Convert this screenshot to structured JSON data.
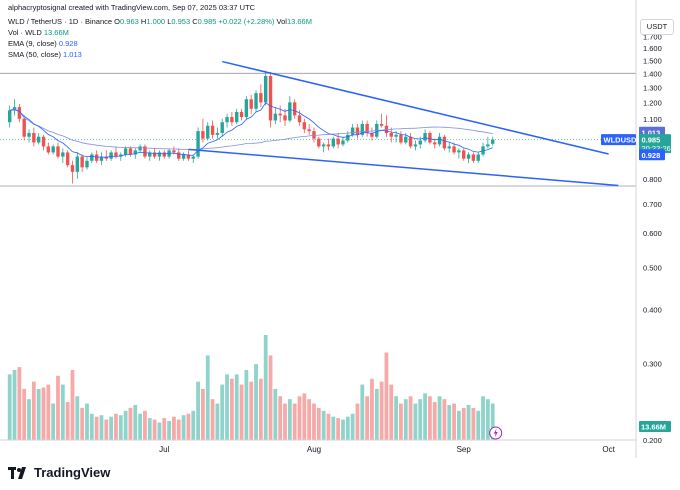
{
  "header": {
    "credit": "alphacryptosignal created with TradingView.com, Sep 07, 2025 03:37 UTC",
    "symbol_line": {
      "symbol": "WLD / TetherUS · 1D · Binance",
      "o_label": "O",
      "o": "0.963",
      "h_label": "H",
      "h": "1.000",
      "l_label": "L",
      "l": "0.953",
      "c_label": "C",
      "c": "0.985",
      "change": "+0.022 (+2.28%)",
      "vol_label": "Vol",
      "vol": "13.66M"
    },
    "vol_line": {
      "label": "Vol · WLD",
      "value": "13.66M"
    },
    "ema_line": {
      "label": "EMA (9, close)",
      "value": "0.928"
    },
    "sma_line": {
      "label": "SMA (50, close)",
      "value": "1.013"
    }
  },
  "currency_button": "USDT",
  "brand": "TradingView",
  "colors": {
    "up": "#26a69a",
    "down": "#ef5350",
    "vol_up": "#8fd3ca",
    "vol_down": "#f7a9a7",
    "ema": "#2962ff",
    "sma": "#7e8fe0",
    "trendline": "#2962ff"
  },
  "chart_data": {
    "type": "candlestick",
    "y_scale": "log",
    "ylim": [
      0.2,
      1.98
    ],
    "y_ticks": [
      "1.800",
      "1.700",
      "1.600",
      "1.500",
      "1.400",
      "1.300",
      "1.200",
      "1.100",
      "1.000",
      "0.900",
      "0.800",
      "0.700",
      "0.600",
      "0.500",
      "0.400",
      "0.300",
      "0.200"
    ],
    "x_ticks": [
      "Jul",
      "Aug",
      "Sep",
      "Oct"
    ],
    "date_range": [
      "2025-06-01",
      "2025-09-07"
    ],
    "price_labels": [
      {
        "text": "1.013",
        "value": 1.013,
        "color": "#5b6fd8"
      },
      {
        "text": "WLDUSDT",
        "value": 0.985,
        "color": "#2962ff"
      },
      {
        "text": "0.985",
        "value": 0.985,
        "color": "#26a69a"
      },
      {
        "text": "20:22:26",
        "value": 0.985,
        "color": "#26a69a"
      },
      {
        "text": "0.928",
        "value": 0.928,
        "color": "#2962ff"
      }
    ],
    "horizontal_lines": [
      1.4,
      0.77
    ],
    "current_price": 0.985,
    "volume_label": "13.66M",
    "candles": [
      {
        "o": 1.08,
        "h": 1.18,
        "l": 1.05,
        "c": 1.15,
        "v": 45
      },
      {
        "o": 1.15,
        "h": 1.22,
        "l": 1.12,
        "c": 1.17,
        "v": 48
      },
      {
        "o": 1.17,
        "h": 1.19,
        "l": 1.08,
        "c": 1.1,
        "v": 50
      },
      {
        "o": 1.1,
        "h": 1.12,
        "l": 0.98,
        "c": 1.0,
        "v": 35
      },
      {
        "o": 1.0,
        "h": 1.04,
        "l": 0.97,
        "c": 1.02,
        "v": 28
      },
      {
        "o": 1.02,
        "h": 1.05,
        "l": 0.95,
        "c": 0.97,
        "v": 40
      },
      {
        "o": 0.97,
        "h": 1.02,
        "l": 0.96,
        "c": 1.0,
        "v": 35
      },
      {
        "o": 1.0,
        "h": 1.01,
        "l": 0.93,
        "c": 0.95,
        "v": 36
      },
      {
        "o": 0.95,
        "h": 0.97,
        "l": 0.91,
        "c": 0.92,
        "v": 38
      },
      {
        "o": 0.92,
        "h": 0.96,
        "l": 0.91,
        "c": 0.95,
        "v": 25
      },
      {
        "o": 0.95,
        "h": 0.97,
        "l": 0.89,
        "c": 0.9,
        "v": 44
      },
      {
        "o": 0.9,
        "h": 0.94,
        "l": 0.87,
        "c": 0.92,
        "v": 38
      },
      {
        "o": 0.92,
        "h": 0.93,
        "l": 0.85,
        "c": 0.86,
        "v": 26
      },
      {
        "o": 0.86,
        "h": 0.88,
        "l": 0.78,
        "c": 0.83,
        "v": 48
      },
      {
        "o": 0.83,
        "h": 0.92,
        "l": 0.8,
        "c": 0.9,
        "v": 30
      },
      {
        "o": 0.9,
        "h": 0.91,
        "l": 0.83,
        "c": 0.85,
        "v": 22
      },
      {
        "o": 0.85,
        "h": 0.9,
        "l": 0.84,
        "c": 0.88,
        "v": 25
      },
      {
        "o": 0.88,
        "h": 0.92,
        "l": 0.87,
        "c": 0.91,
        "v": 18
      },
      {
        "o": 0.91,
        "h": 0.93,
        "l": 0.87,
        "c": 0.88,
        "v": 16
      },
      {
        "o": 0.88,
        "h": 0.92,
        "l": 0.86,
        "c": 0.9,
        "v": 17
      },
      {
        "o": 0.9,
        "h": 0.93,
        "l": 0.88,
        "c": 0.89,
        "v": 14
      },
      {
        "o": 0.89,
        "h": 0.93,
        "l": 0.88,
        "c": 0.92,
        "v": 16
      },
      {
        "o": 0.92,
        "h": 0.95,
        "l": 0.89,
        "c": 0.9,
        "v": 18
      },
      {
        "o": 0.9,
        "h": 0.92,
        "l": 0.88,
        "c": 0.91,
        "v": 17
      },
      {
        "o": 0.91,
        "h": 0.95,
        "l": 0.9,
        "c": 0.94,
        "v": 20
      },
      {
        "o": 0.94,
        "h": 0.95,
        "l": 0.9,
        "c": 0.91,
        "v": 22
      },
      {
        "o": 0.91,
        "h": 0.94,
        "l": 0.89,
        "c": 0.93,
        "v": 24
      },
      {
        "o": 0.93,
        "h": 0.96,
        "l": 0.92,
        "c": 0.95,
        "v": 18
      },
      {
        "o": 0.95,
        "h": 0.96,
        "l": 0.89,
        "c": 0.9,
        "v": 20
      },
      {
        "o": 0.9,
        "h": 0.93,
        "l": 0.88,
        "c": 0.92,
        "v": 15
      },
      {
        "o": 0.92,
        "h": 0.94,
        "l": 0.89,
        "c": 0.9,
        "v": 14
      },
      {
        "o": 0.9,
        "h": 0.93,
        "l": 0.88,
        "c": 0.92,
        "v": 12
      },
      {
        "o": 0.92,
        "h": 0.93,
        "l": 0.89,
        "c": 0.9,
        "v": 15
      },
      {
        "o": 0.9,
        "h": 0.94,
        "l": 0.89,
        "c": 0.93,
        "v": 13
      },
      {
        "o": 0.93,
        "h": 0.95,
        "l": 0.91,
        "c": 0.92,
        "v": 16
      },
      {
        "o": 0.92,
        "h": 0.94,
        "l": 0.88,
        "c": 0.89,
        "v": 14
      },
      {
        "o": 0.89,
        "h": 0.92,
        "l": 0.88,
        "c": 0.91,
        "v": 17
      },
      {
        "o": 0.91,
        "h": 0.93,
        "l": 0.88,
        "c": 0.89,
        "v": 18
      },
      {
        "o": 0.89,
        "h": 0.91,
        "l": 0.87,
        "c": 0.9,
        "v": 20
      },
      {
        "o": 0.9,
        "h": 1.05,
        "l": 0.89,
        "c": 1.03,
        "v": 40
      },
      {
        "o": 1.03,
        "h": 1.1,
        "l": 0.97,
        "c": 0.99,
        "v": 35
      },
      {
        "o": 0.99,
        "h": 1.08,
        "l": 0.98,
        "c": 1.06,
        "v": 58
      },
      {
        "o": 1.06,
        "h": 1.09,
        "l": 0.99,
        "c": 1.01,
        "v": 28
      },
      {
        "o": 1.01,
        "h": 1.05,
        "l": 0.99,
        "c": 1.02,
        "v": 25
      },
      {
        "o": 1.02,
        "h": 1.1,
        "l": 1.0,
        "c": 1.08,
        "v": 38
      },
      {
        "o": 1.08,
        "h": 1.13,
        "l": 1.05,
        "c": 1.11,
        "v": 45
      },
      {
        "o": 1.11,
        "h": 1.14,
        "l": 1.06,
        "c": 1.08,
        "v": 42
      },
      {
        "o": 1.08,
        "h": 1.16,
        "l": 1.07,
        "c": 1.14,
        "v": 45
      },
      {
        "o": 1.14,
        "h": 1.16,
        "l": 1.09,
        "c": 1.11,
        "v": 38
      },
      {
        "o": 1.11,
        "h": 1.24,
        "l": 1.1,
        "c": 1.22,
        "v": 48
      },
      {
        "o": 1.22,
        "h": 1.25,
        "l": 1.13,
        "c": 1.16,
        "v": 40
      },
      {
        "o": 1.16,
        "h": 1.28,
        "l": 1.14,
        "c": 1.26,
        "v": 52
      },
      {
        "o": 1.26,
        "h": 1.32,
        "l": 1.17,
        "c": 1.2,
        "v": 42
      },
      {
        "o": 1.2,
        "h": 1.42,
        "l": 1.18,
        "c": 1.38,
        "v": 72
      },
      {
        "o": 1.38,
        "h": 1.41,
        "l": 1.05,
        "c": 1.09,
        "v": 58
      },
      {
        "o": 1.09,
        "h": 1.17,
        "l": 1.07,
        "c": 1.13,
        "v": 35
      },
      {
        "o": 1.13,
        "h": 1.18,
        "l": 1.08,
        "c": 1.12,
        "v": 30
      },
      {
        "o": 1.12,
        "h": 1.16,
        "l": 1.06,
        "c": 1.09,
        "v": 25
      },
      {
        "o": 1.09,
        "h": 1.24,
        "l": 1.08,
        "c": 1.2,
        "v": 28
      },
      {
        "o": 1.2,
        "h": 1.22,
        "l": 1.1,
        "c": 1.12,
        "v": 25
      },
      {
        "o": 1.12,
        "h": 1.15,
        "l": 1.06,
        "c": 1.08,
        "v": 30
      },
      {
        "o": 1.08,
        "h": 1.1,
        "l": 1.02,
        "c": 1.04,
        "v": 32
      },
      {
        "o": 1.04,
        "h": 1.07,
        "l": 1.01,
        "c": 1.03,
        "v": 28
      },
      {
        "o": 1.03,
        "h": 1.05,
        "l": 0.97,
        "c": 0.99,
        "v": 25
      },
      {
        "o": 0.99,
        "h": 1.0,
        "l": 0.94,
        "c": 0.95,
        "v": 22
      },
      {
        "o": 0.95,
        "h": 0.97,
        "l": 0.92,
        "c": 0.96,
        "v": 20
      },
      {
        "o": 0.96,
        "h": 0.99,
        "l": 0.93,
        "c": 0.95,
        "v": 18
      },
      {
        "o": 0.95,
        "h": 1.0,
        "l": 0.94,
        "c": 0.99,
        "v": 16
      },
      {
        "o": 0.99,
        "h": 1.02,
        "l": 0.94,
        "c": 0.96,
        "v": 15
      },
      {
        "o": 0.96,
        "h": 1.0,
        "l": 0.95,
        "c": 0.98,
        "v": 14
      },
      {
        "o": 0.98,
        "h": 1.03,
        "l": 0.97,
        "c": 1.01,
        "v": 16
      },
      {
        "o": 1.01,
        "h": 1.07,
        "l": 1.0,
        "c": 1.05,
        "v": 18
      },
      {
        "o": 1.05,
        "h": 1.07,
        "l": 0.99,
        "c": 1.01,
        "v": 25
      },
      {
        "o": 1.01,
        "h": 1.09,
        "l": 1.0,
        "c": 1.07,
        "v": 38
      },
      {
        "o": 1.07,
        "h": 1.09,
        "l": 1.0,
        "c": 1.02,
        "v": 30
      },
      {
        "o": 1.02,
        "h": 1.05,
        "l": 0.98,
        "c": 1.0,
        "v": 42
      },
      {
        "o": 1.0,
        "h": 1.09,
        "l": 0.99,
        "c": 1.07,
        "v": 35
      },
      {
        "o": 1.07,
        "h": 1.13,
        "l": 1.05,
        "c": 1.06,
        "v": 40
      },
      {
        "o": 1.06,
        "h": 1.12,
        "l": 1.0,
        "c": 1.02,
        "v": 60
      },
      {
        "o": 1.02,
        "h": 1.05,
        "l": 0.97,
        "c": 1.0,
        "v": 38
      },
      {
        "o": 1.0,
        "h": 1.03,
        "l": 0.97,
        "c": 1.01,
        "v": 30
      },
      {
        "o": 1.01,
        "h": 1.03,
        "l": 0.96,
        "c": 0.97,
        "v": 25
      },
      {
        "o": 0.97,
        "h": 1.02,
        "l": 0.96,
        "c": 1.0,
        "v": 28
      },
      {
        "o": 1.0,
        "h": 1.02,
        "l": 0.94,
        "c": 0.95,
        "v": 30
      },
      {
        "o": 0.95,
        "h": 0.98,
        "l": 0.93,
        "c": 0.96,
        "v": 25
      },
      {
        "o": 0.96,
        "h": 1.0,
        "l": 0.94,
        "c": 0.98,
        "v": 28
      },
      {
        "o": 0.98,
        "h": 1.04,
        "l": 0.97,
        "c": 1.02,
        "v": 32
      },
      {
        "o": 1.02,
        "h": 1.03,
        "l": 0.96,
        "c": 0.97,
        "v": 30
      },
      {
        "o": 0.97,
        "h": 0.99,
        "l": 0.94,
        "c": 0.96,
        "v": 26
      },
      {
        "o": 0.96,
        "h": 1.02,
        "l": 0.95,
        "c": 1.0,
        "v": 30
      },
      {
        "o": 1.0,
        "h": 1.01,
        "l": 0.93,
        "c": 0.94,
        "v": 28
      },
      {
        "o": 0.94,
        "h": 0.97,
        "l": 0.92,
        "c": 0.95,
        "v": 24
      },
      {
        "o": 0.95,
        "h": 0.97,
        "l": 0.91,
        "c": 0.92,
        "v": 25
      },
      {
        "o": 0.92,
        "h": 0.94,
        "l": 0.89,
        "c": 0.93,
        "v": 20
      },
      {
        "o": 0.93,
        "h": 0.94,
        "l": 0.88,
        "c": 0.89,
        "v": 22
      },
      {
        "o": 0.89,
        "h": 0.92,
        "l": 0.87,
        "c": 0.91,
        "v": 24
      },
      {
        "o": 0.91,
        "h": 0.92,
        "l": 0.87,
        "c": 0.88,
        "v": 22
      },
      {
        "o": 0.88,
        "h": 0.92,
        "l": 0.87,
        "c": 0.91,
        "v": 20
      },
      {
        "o": 0.91,
        "h": 0.97,
        "l": 0.9,
        "c": 0.95,
        "v": 30
      },
      {
        "o": 0.95,
        "h": 1.0,
        "l": 0.94,
        "c": 0.96,
        "v": 28
      },
      {
        "o": 0.963,
        "h": 1.0,
        "l": 0.953,
        "c": 0.985,
        "v": 25
      }
    ]
  }
}
